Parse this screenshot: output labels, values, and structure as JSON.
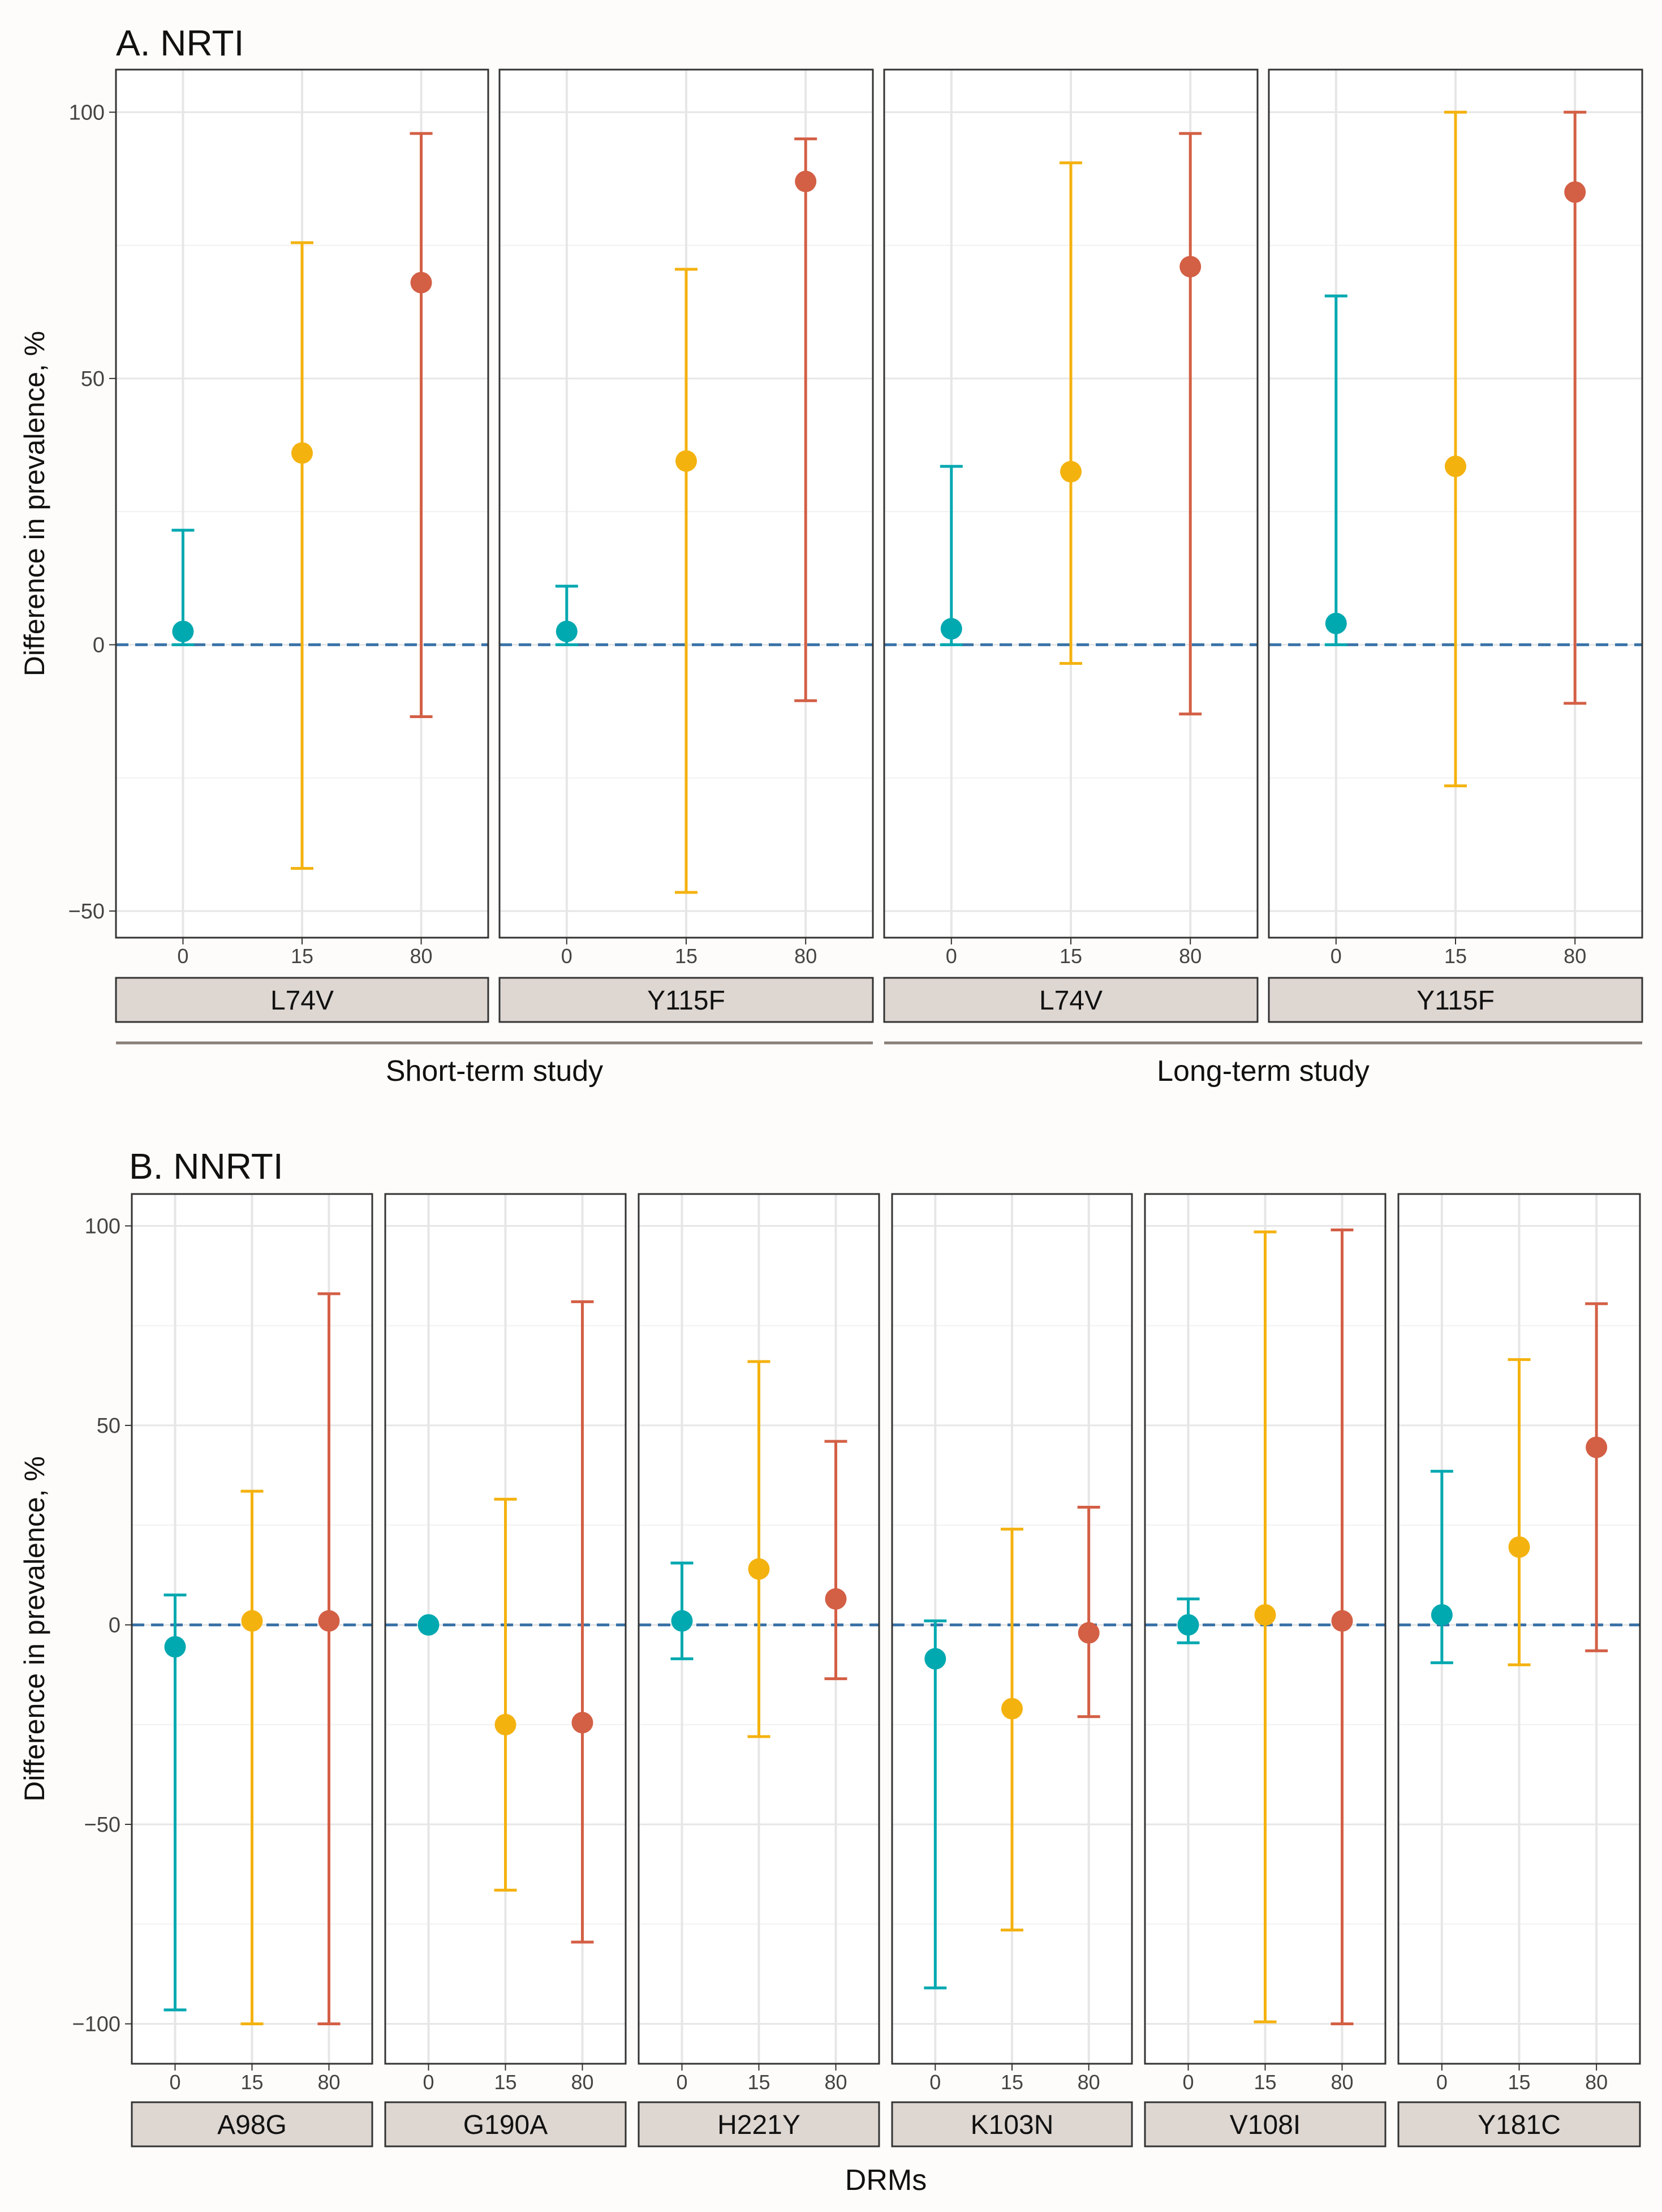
{
  "chart_data": [
    {
      "type": "scatter",
      "subtype": "point-with-error-bars",
      "title": "A. NRTI",
      "ylabel": "Difference in prevalence, %",
      "xlabel": "",
      "ylim": [
        -55,
        108
      ],
      "yticks": [
        100,
        50,
        0,
        -50
      ],
      "ytick_labels": [
        "100",
        "50",
        "0",
        "−50"
      ],
      "reference_line": 0,
      "categories": [
        "0",
        "15",
        "80"
      ],
      "colors": {
        "0": "#00a8b0",
        "15": "#f4b20f",
        "80": "#d35f45"
      },
      "study_groups": [
        {
          "label": "Short-term study",
          "panels": [
            0,
            1
          ]
        },
        {
          "label": "Long-term study",
          "panels": [
            2,
            3
          ]
        }
      ],
      "panels": [
        {
          "label": "L74V",
          "points": [
            {
              "x": "0",
              "y": 2.5,
              "lo": 0,
              "hi": 21.5
            },
            {
              "x": "15",
              "y": 36,
              "lo": -42,
              "hi": 75.5
            },
            {
              "x": "80",
              "y": 68,
              "lo": -13.5,
              "hi": 96
            }
          ]
        },
        {
          "label": "Y115F",
          "points": [
            {
              "x": "0",
              "y": 2.5,
              "lo": 0,
              "hi": 11
            },
            {
              "x": "15",
              "y": 34.5,
              "lo": -46.5,
              "hi": 70.5
            },
            {
              "x": "80",
              "y": 87,
              "lo": -10.5,
              "hi": 95
            }
          ]
        },
        {
          "label": "L74V",
          "points": [
            {
              "x": "0",
              "y": 3,
              "lo": 0,
              "hi": 33.5
            },
            {
              "x": "15",
              "y": 32.5,
              "lo": -3.5,
              "hi": 90.5
            },
            {
              "x": "80",
              "y": 71,
              "lo": -13,
              "hi": 96
            }
          ]
        },
        {
          "label": "Y115F",
          "points": [
            {
              "x": "0",
              "y": 4,
              "lo": 0,
              "hi": 65.5
            },
            {
              "x": "15",
              "y": 33.5,
              "lo": -26.5,
              "hi": 100
            },
            {
              "x": "80",
              "y": 85,
              "lo": -11,
              "hi": 100
            }
          ]
        }
      ]
    },
    {
      "type": "scatter",
      "subtype": "point-with-error-bars",
      "title": "B. NNRTI",
      "ylabel": "Difference in prevalence, %",
      "xlabel": "DRMs",
      "ylim": [
        -110,
        108
      ],
      "yticks": [
        100,
        50,
        0,
        -50,
        -100
      ],
      "ytick_labels": [
        "100",
        "50",
        "0",
        "−50",
        "−100"
      ],
      "reference_line": 0,
      "categories": [
        "0",
        "15",
        "80"
      ],
      "colors": {
        "0": "#00a8b0",
        "15": "#f4b20f",
        "80": "#d35f45"
      },
      "panels": [
        {
          "label": "A98G",
          "points": [
            {
              "x": "0",
              "y": -5.5,
              "lo": -96.5,
              "hi": 7.5
            },
            {
              "x": "15",
              "y": 1,
              "lo": -100,
              "hi": 33.5
            },
            {
              "x": "80",
              "y": 1,
              "lo": -100,
              "hi": 83
            }
          ]
        },
        {
          "label": "G190A",
          "points": [
            {
              "x": "0",
              "y": 0,
              "lo": 0,
              "hi": 0
            },
            {
              "x": "15",
              "y": -25,
              "lo": -66.5,
              "hi": 31.5
            },
            {
              "x": "80",
              "y": -24.5,
              "lo": -79.5,
              "hi": 81
            }
          ]
        },
        {
          "label": "H221Y",
          "points": [
            {
              "x": "0",
              "y": 1,
              "lo": -8.5,
              "hi": 15.5
            },
            {
              "x": "15",
              "y": 14,
              "lo": -28,
              "hi": 66
            },
            {
              "x": "80",
              "y": 6.5,
              "lo": -13.5,
              "hi": 46
            }
          ]
        },
        {
          "label": "K103N",
          "points": [
            {
              "x": "0",
              "y": -8.5,
              "lo": -91,
              "hi": 1
            },
            {
              "x": "15",
              "y": -21,
              "lo": -76.5,
              "hi": 24
            },
            {
              "x": "80",
              "y": -2,
              "lo": -23,
              "hi": 29.5
            }
          ]
        },
        {
          "label": "V108I",
          "points": [
            {
              "x": "0",
              "y": 0,
              "lo": -4.5,
              "hi": 6.5
            },
            {
              "x": "15",
              "y": 2.5,
              "lo": -99.5,
              "hi": 98.5
            },
            {
              "x": "80",
              "y": 1,
              "lo": -100,
              "hi": 99
            }
          ]
        },
        {
          "label": "Y181C",
          "points": [
            {
              "x": "0",
              "y": 2.5,
              "lo": -9.5,
              "hi": 38.5
            },
            {
              "x": "15",
              "y": 19.5,
              "lo": -10,
              "hi": 66.5
            },
            {
              "x": "80",
              "y": 44.5,
              "lo": -6.5,
              "hi": 80.5
            }
          ]
        }
      ]
    }
  ]
}
